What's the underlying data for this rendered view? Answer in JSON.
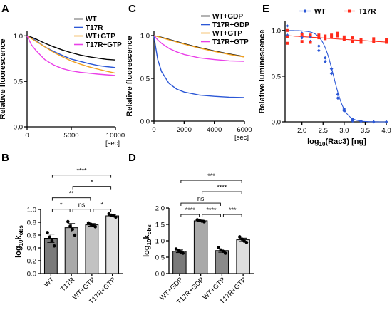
{
  "panels": {
    "A": {
      "letter": "A"
    },
    "B": {
      "letter": "B"
    },
    "C": {
      "letter": "C"
    },
    "D": {
      "letter": "D"
    },
    "E": {
      "letter": "E"
    }
  },
  "chart_data": [
    {
      "id": "A",
      "type": "line",
      "ylabel": "Relative fluorescence",
      "xunit": "[sec]",
      "xlim": [
        0,
        10000
      ],
      "ylim": [
        0,
        1.05
      ],
      "xticks": [
        0,
        5000,
        10000
      ],
      "yticks": [
        0.0,
        0.5,
        1.0
      ],
      "legend_position": "top-right",
      "x": [
        0,
        500,
        1000,
        2000,
        3000,
        4000,
        5000,
        6000,
        7000,
        8000,
        9000,
        10000
      ],
      "series": [
        {
          "name": "WT",
          "color": "#000000",
          "values": [
            1.0,
            0.985,
            0.965,
            0.92,
            0.88,
            0.845,
            0.815,
            0.79,
            0.77,
            0.755,
            0.742,
            0.735
          ]
        },
        {
          "name": "T17R",
          "color": "#2b57d6",
          "values": [
            1.0,
            0.975,
            0.95,
            0.88,
            0.83,
            0.785,
            0.745,
            0.72,
            0.695,
            0.675,
            0.662,
            0.652
          ]
        },
        {
          "name": "WT+GTP",
          "color": "#f0a020",
          "values": [
            1.0,
            0.97,
            0.94,
            0.88,
            0.82,
            0.77,
            0.725,
            0.69,
            0.66,
            0.635,
            0.612,
            0.59
          ]
        },
        {
          "name": "T17R+GTP",
          "color": "#ea3fe8",
          "values": [
            1.0,
            0.9,
            0.84,
            0.74,
            0.68,
            0.64,
            0.615,
            0.6,
            0.59,
            0.58,
            0.572,
            0.565
          ]
        }
      ]
    },
    {
      "id": "C",
      "type": "line",
      "ylabel": "Relative fluorescence",
      "xunit": "[sec]",
      "xlim": [
        0,
        6000
      ],
      "ylim": [
        0,
        1.05
      ],
      "xticks": [
        0,
        2000,
        4000,
        6000
      ],
      "yticks": [
        0.0,
        0.5,
        1.0
      ],
      "legend_position": "top-right",
      "x": [
        0,
        100,
        250,
        500,
        1000,
        1500,
        2000,
        3000,
        4000,
        5000,
        6000
      ],
      "series": [
        {
          "name": "WT+GDP",
          "color": "#000000",
          "values": [
            1.0,
            0.995,
            0.99,
            0.98,
            0.955,
            0.93,
            0.905,
            0.86,
            0.82,
            0.785,
            0.755
          ]
        },
        {
          "name": "T17R+GDP",
          "color": "#2b57d6",
          "values": [
            1.0,
            0.88,
            0.72,
            0.58,
            0.44,
            0.375,
            0.34,
            0.305,
            0.29,
            0.28,
            0.275
          ]
        },
        {
          "name": "WT+GTP",
          "color": "#f0a020",
          "values": [
            1.0,
            0.995,
            0.99,
            0.975,
            0.95,
            0.925,
            0.9,
            0.855,
            0.815,
            0.78,
            0.75
          ]
        },
        {
          "name": "T17R+GTP",
          "color": "#ea3fe8",
          "values": [
            1.0,
            0.98,
            0.95,
            0.91,
            0.85,
            0.81,
            0.78,
            0.74,
            0.72,
            0.705,
            0.7
          ]
        }
      ]
    },
    {
      "id": "E",
      "type": "scatter",
      "ylabel": "Relative luminescence",
      "xlabel_pre": "log",
      "xlabel_sub": "10",
      "xlabel_post": "(Rac3) [ng]",
      "xlim": [
        1.6,
        4.05
      ],
      "ylim": [
        0,
        1.1
      ],
      "xticks": [
        2.0,
        2.5,
        3.0,
        3.5,
        4.0
      ],
      "yticks": [
        0.0,
        0.5,
        1.0
      ],
      "legend_position": "top",
      "series": [
        {
          "name": "WT",
          "color": "#2b57d6",
          "marker": "diamond",
          "x": [
            1.65,
            1.65,
            1.65,
            2.0,
            2.0,
            2.2,
            2.2,
            2.4,
            2.4,
            2.55,
            2.55,
            2.7,
            2.7,
            2.85,
            2.85,
            3.0,
            3.0,
            3.2,
            3.2,
            3.4,
            3.4,
            3.7,
            4.0
          ],
          "y": [
            1.05,
            1.0,
            0.95,
            0.97,
            0.92,
            0.93,
            0.88,
            0.83,
            0.78,
            0.7,
            0.66,
            0.58,
            0.53,
            0.3,
            0.26,
            0.14,
            0.12,
            0.03,
            0.01,
            0.01,
            0.005,
            0.0,
            0.0
          ]
        },
        {
          "name": "T17R",
          "color": "#ff2a1a",
          "marker": "square",
          "x": [
            1.65,
            1.65,
            1.65,
            2.0,
            2.0,
            2.2,
            2.2,
            2.4,
            2.4,
            2.55,
            2.55,
            2.7,
            2.7,
            2.85,
            2.85,
            3.0,
            3.0,
            3.2,
            3.2,
            3.4,
            3.4,
            3.7,
            3.7,
            4.0,
            4.0
          ],
          "y": [
            1.0,
            0.93,
            0.86,
            0.96,
            0.88,
            0.95,
            0.87,
            0.95,
            0.92,
            0.94,
            0.91,
            0.95,
            0.93,
            0.97,
            0.94,
            0.93,
            0.9,
            0.92,
            0.88,
            0.9,
            0.87,
            0.91,
            0.88,
            0.9,
            0.87
          ]
        }
      ],
      "fits": [
        {
          "series": "WT",
          "type": "sigmoid",
          "top": 1.0,
          "bottom": 0.0,
          "logIC50": 2.75,
          "hill": 3.2
        },
        {
          "series": "T17R",
          "type": "linear",
          "y0": 0.945,
          "slope": -0.03
        }
      ]
    },
    {
      "id": "B",
      "type": "bar",
      "ylabel_main": "log",
      "ylabel_sub": "10",
      "ylabel_post": "k",
      "ylabel_subscript": "obs",
      "ylim": [
        0,
        1.0
      ],
      "yticks": [
        0.0,
        0.2,
        0.4,
        0.6,
        0.8,
        1.0
      ],
      "categories": [
        "WT",
        "T17R",
        "WT+GTP",
        "T17R+GTP"
      ],
      "values": [
        0.55,
        0.715,
        0.76,
        0.9
      ],
      "errors": [
        0.065,
        0.065,
        0.02,
        0.015
      ],
      "bar_colors": [
        "#7a7a7a",
        "#a9a9a9",
        "#c2c2c2",
        "#dedede"
      ],
      "points": [
        [
          0.64,
          0.57,
          0.51,
          0.43
        ],
        [
          0.81,
          0.74,
          0.69,
          0.6
        ],
        [
          0.79,
          0.77,
          0.75,
          0.73
        ],
        [
          0.93,
          0.91,
          0.9,
          0.88
        ]
      ],
      "comparisons": [
        {
          "a": 0,
          "b": 1,
          "label": "*",
          "level": 1
        },
        {
          "a": 1,
          "b": 2,
          "label": "ns",
          "level": 1
        },
        {
          "a": 2,
          "b": 3,
          "label": "*",
          "level": 1
        },
        {
          "a": 0,
          "b": 2,
          "label": "**",
          "level": 2
        },
        {
          "a": 1,
          "b": 3,
          "label": "*",
          "level": 3
        },
        {
          "a": 0,
          "b": 3,
          "label": "****",
          "level": 4
        }
      ]
    },
    {
      "id": "D",
      "type": "bar",
      "ylabel_main": "log",
      "ylabel_sub": "10",
      "ylabel_post": "k",
      "ylabel_subscript": "obs",
      "ylim": [
        0,
        2.0
      ],
      "yticks": [
        0.0,
        0.5,
        1.0,
        1.5,
        2.0
      ],
      "categories": [
        "WT+GDP",
        "T17R+GDP",
        "WT+GTP",
        "T17R+GTP"
      ],
      "values": [
        0.68,
        1.61,
        0.7,
        1.03
      ],
      "errors": [
        0.04,
        0.02,
        0.05,
        0.05
      ],
      "bar_colors": [
        "#7a7a7a",
        "#a9a9a9",
        "#8a8a8a",
        "#dedede"
      ],
      "points": [
        [
          0.75,
          0.7,
          0.66,
          0.62
        ],
        [
          1.64,
          1.62,
          1.6,
          1.58
        ],
        [
          0.79,
          0.72,
          0.68,
          0.62
        ],
        [
          1.12,
          1.05,
          0.99,
          0.95
        ]
      ],
      "comparisons": [
        {
          "a": 0,
          "b": 1,
          "label": "****",
          "level": 1
        },
        {
          "a": 1,
          "b": 2,
          "label": "****",
          "level": 1
        },
        {
          "a": 2,
          "b": 3,
          "label": "***",
          "level": 1
        },
        {
          "a": 0,
          "b": 2,
          "label": "ns",
          "level": 2
        },
        {
          "a": 1,
          "b": 3,
          "label": "****",
          "level": 3
        },
        {
          "a": 0,
          "b": 3,
          "label": "***",
          "level": 4
        }
      ]
    }
  ]
}
